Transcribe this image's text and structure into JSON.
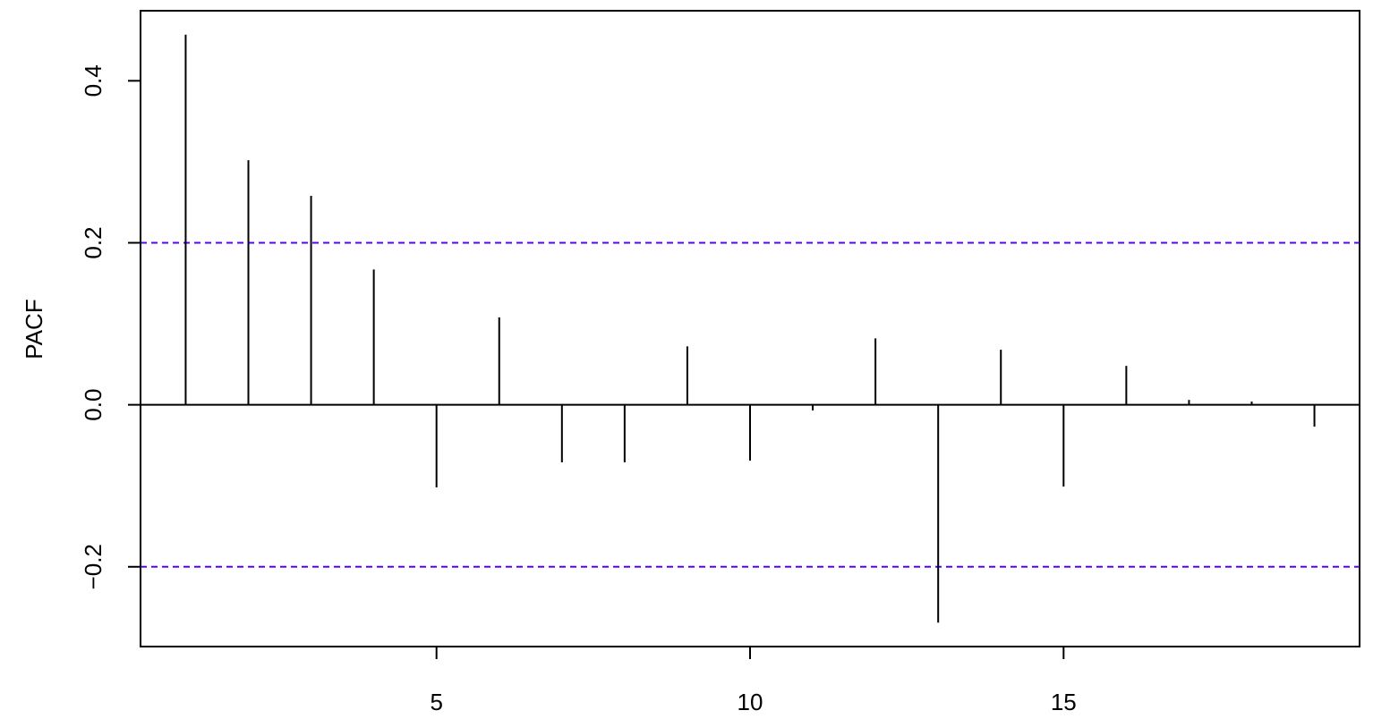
{
  "chart_data": {
    "type": "bar",
    "ylabel": "PACF",
    "xlabel": "",
    "title": "",
    "x": [
      1,
      2,
      3,
      4,
      5,
      6,
      7,
      8,
      9,
      10,
      11,
      12,
      13,
      14,
      15,
      16,
      17,
      18,
      19
    ],
    "values": [
      0.457,
      0.302,
      0.258,
      0.167,
      -0.102,
      0.108,
      -0.071,
      -0.071,
      0.072,
      -0.069,
      -0.007,
      0.082,
      -0.269,
      0.068,
      -0.101,
      0.048,
      0.006,
      0.004,
      -0.027
    ],
    "xlim": [
      0.28,
      19.72
    ],
    "ylim": [
      -0.2985,
      0.4865
    ],
    "x_ticks": [
      5,
      10,
      15
    ],
    "x_tick_labels": [
      "5",
      "10",
      "15"
    ],
    "y_ticks": [
      -0.2,
      0.0,
      0.2,
      0.4
    ],
    "y_tick_labels": [
      "−0.2",
      "0.0",
      "0.2",
      "0.4"
    ],
    "confidence_bounds": [
      0.2,
      -0.2
    ],
    "grid": false,
    "colors": {
      "bars": "#000000",
      "confidence": "#5a00ff",
      "axes": "#000000"
    }
  }
}
